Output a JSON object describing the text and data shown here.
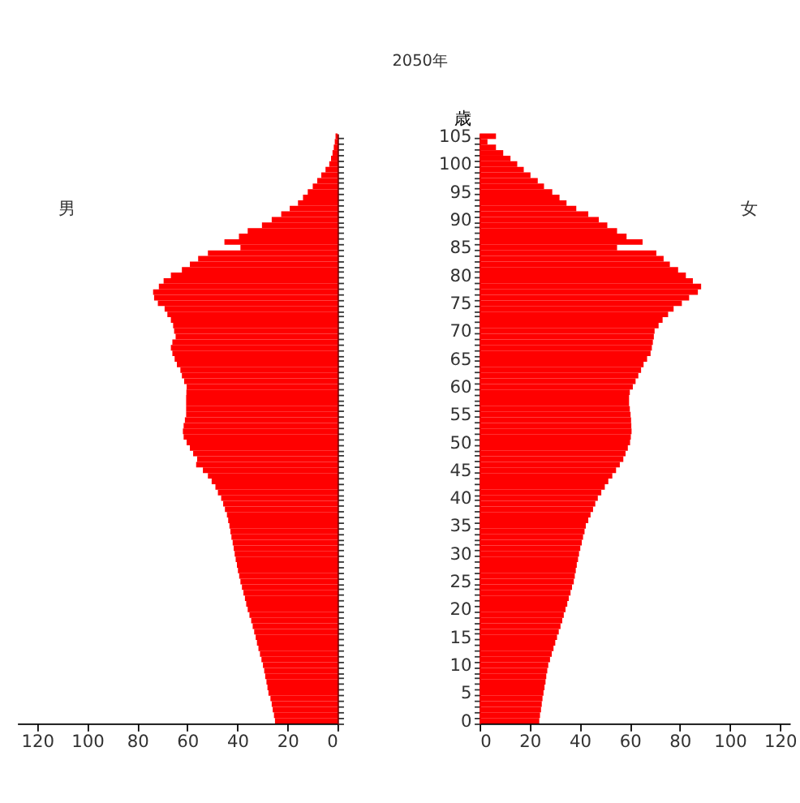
{
  "chart_data": [
    {
      "type": "bar",
      "orientation": "horizontal",
      "annotations": [
        "男"
      ],
      "tick_labels": "x",
      "grid": false,
      "categories": [
        "105",
        null,
        null,
        null,
        null,
        "100",
        null,
        null,
        null,
        null,
        "95",
        null,
        null,
        null,
        null,
        "90",
        null,
        null,
        null,
        null,
        "85",
        null,
        null,
        null,
        null,
        "80",
        null,
        null,
        null,
        null,
        "75",
        null,
        null,
        null,
        null,
        "70",
        null,
        null,
        null,
        null,
        "65",
        null,
        null,
        null,
        null,
        "60",
        null,
        null,
        null,
        null,
        "55",
        null,
        null,
        null,
        null,
        "50",
        null,
        null,
        null,
        null,
        "45",
        null,
        null,
        null,
        null,
        "40",
        null,
        null,
        null,
        null,
        "35",
        null,
        null,
        null,
        null,
        "30",
        null,
        null,
        null,
        null,
        "25",
        null,
        null,
        null,
        null,
        "20",
        null,
        null,
        null,
        null,
        "15",
        null,
        null,
        null,
        null,
        "10",
        null,
        null,
        null,
        null,
        "5",
        null,
        null,
        null,
        null,
        "0"
      ],
      "xlim": [
        128,
        0
      ],
      "xticks": [
        120,
        100,
        80,
        60,
        40,
        20,
        0
      ],
      "series": [
        {
          "color": "#ff0000",
          "values": [
            0.8,
            1.1,
            1.5,
            2.0,
            2.6,
            3.3,
            4.8,
            6.5,
            8.1,
            9.9,
            11.9,
            13.8,
            15.8,
            19.1,
            22.5,
            26.3,
            30.2,
            35.9,
            39.4,
            45.2,
            38.8,
            51.8,
            55.7,
            59.0,
            62.2,
            66.6,
            69.5,
            71.4,
            73.7,
            73.3,
            71.8,
            69.1,
            68.0,
            66.6,
            65.7,
            65.3,
            64.7,
            66.0,
            66.6,
            66.0,
            65.1,
            64.2,
            62.8,
            62.2,
            61.3,
            60.3,
            60.4,
            60.5,
            60.5,
            60.5,
            60.5,
            61.0,
            61.5,
            61.8,
            61.5,
            60.3,
            59.0,
            57.7,
            56.1,
            56.5,
            53.8,
            51.8,
            50.3,
            48.8,
            47.8,
            46.5,
            45.7,
            45.0,
            44.2,
            43.7,
            43.2,
            42.8,
            42.4,
            41.9,
            41.5,
            41.1,
            40.7,
            40.2,
            39.8,
            39.3,
            38.8,
            38.2,
            37.6,
            37.0,
            36.5,
            35.9,
            35.2,
            34.5,
            33.9,
            33.3,
            32.7,
            32.2,
            31.6,
            31.0,
            30.4,
            29.8,
            29.3,
            28.9,
            28.4,
            28.0,
            27.6,
            26.8,
            26.3,
            25.9,
            25.4,
            25.0
          ]
        }
      ]
    },
    {
      "type": "bar",
      "orientation": "horizontal",
      "title": "2050年",
      "ylabel": "歳",
      "annotations": [
        "女"
      ],
      "grid": false,
      "categories": [
        "105",
        null,
        null,
        null,
        null,
        "100",
        null,
        null,
        null,
        null,
        "95",
        null,
        null,
        null,
        null,
        "90",
        null,
        null,
        null,
        null,
        "85",
        null,
        null,
        null,
        null,
        "80",
        null,
        null,
        null,
        null,
        "75",
        null,
        null,
        null,
        null,
        "70",
        null,
        null,
        null,
        null,
        "65",
        null,
        null,
        null,
        null,
        "60",
        null,
        null,
        null,
        null,
        "55",
        null,
        null,
        null,
        null,
        "50",
        null,
        null,
        null,
        null,
        "45",
        null,
        null,
        null,
        null,
        "40",
        null,
        null,
        null,
        null,
        "35",
        null,
        null,
        null,
        null,
        "30",
        null,
        null,
        null,
        null,
        "25",
        null,
        null,
        null,
        null,
        "20",
        null,
        null,
        null,
        null,
        "15",
        null,
        null,
        null,
        null,
        "10",
        null,
        null,
        null,
        null,
        "5",
        null,
        null,
        null,
        null,
        "0"
      ],
      "xlim": [
        0,
        124
      ],
      "xticks": [
        0,
        20,
        40,
        60,
        80,
        100,
        120
      ],
      "series": [
        {
          "color": "#ff0000",
          "values": [
            6.5,
            3.1,
            6.5,
            9.4,
            12.3,
            15.0,
            17.6,
            20.3,
            23.2,
            25.7,
            29.0,
            31.9,
            34.7,
            38.6,
            43.4,
            47.6,
            51.0,
            54.9,
            58.7,
            65.1,
            54.9,
            70.6,
            73.5,
            76.0,
            79.3,
            82.4,
            85.2,
            88.5,
            87.2,
            83.7,
            80.8,
            77.5,
            75.3,
            73.1,
            71.5,
            69.9,
            69.6,
            69.2,
            68.8,
            68.3,
            66.9,
            65.5,
            64.5,
            63.4,
            62.3,
            61.2,
            60.0,
            59.7,
            59.7,
            60.0,
            60.3,
            60.5,
            60.6,
            60.7,
            60.4,
            60.1,
            59.2,
            58.3,
            57.4,
            56.0,
            54.5,
            53.0,
            51.4,
            50.0,
            48.6,
            47.2,
            46.2,
            45.3,
            44.3,
            43.4,
            42.4,
            41.9,
            41.3,
            40.8,
            40.2,
            39.7,
            39.3,
            38.8,
            38.4,
            38.0,
            37.6,
            36.9,
            36.3,
            35.6,
            35.0,
            34.3,
            33.6,
            33.0,
            32.3,
            31.6,
            30.9,
            30.2,
            29.5,
            28.8,
            28.1,
            27.4,
            27.0,
            26.6,
            26.3,
            25.9,
            25.5,
            25.1,
            24.8,
            24.5,
            24.1,
            23.8
          ]
        }
      ]
    }
  ]
}
